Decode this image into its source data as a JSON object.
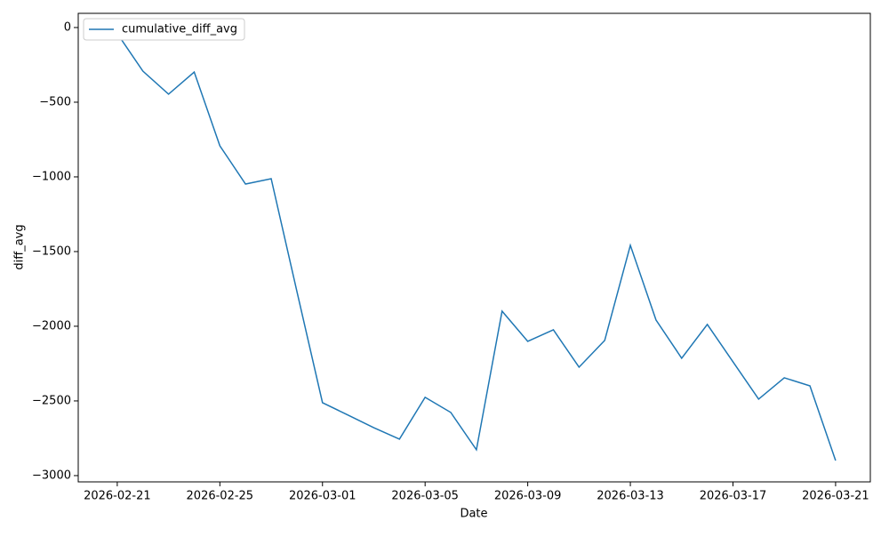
{
  "chart_data": {
    "type": "line",
    "x_label": "Date",
    "y_label": "diff_avg",
    "x": [
      "2026-02-21",
      "2026-02-22",
      "2026-02-23",
      "2026-02-24",
      "2026-02-25",
      "2026-02-26",
      "2026-02-27",
      "2026-02-28",
      "2026-03-01",
      "2026-03-02",
      "2026-03-03",
      "2026-03-04",
      "2026-03-05",
      "2026-03-06",
      "2026-03-07",
      "2026-03-08",
      "2026-03-09",
      "2026-03-10",
      "2026-03-11",
      "2026-03-12",
      "2026-03-13",
      "2026-03-14",
      "2026-03-15",
      "2026-03-16",
      "2026-03-17",
      "2026-03-18",
      "2026-03-19",
      "2026-03-20",
      "2026-03-21"
    ],
    "series": [
      {
        "name": "cumulative_diff_avg",
        "color": "#1f77b4",
        "values": [
          -40,
          -292,
          -446,
          -298,
          -792,
          -1048,
          -1012,
          -1765,
          -2512,
          -2595,
          -2679,
          -2756,
          -2476,
          -2577,
          -2827,
          -1899,
          -2101,
          -2024,
          -2274,
          -2095,
          -1458,
          -1958,
          -2214,
          -1988,
          -2238,
          -2488,
          -2345,
          -2399,
          -2899
        ]
      }
    ],
    "xlim": [
      "2026-02-19T11:30",
      "2026-03-22T08:30"
    ],
    "xticks": [
      "2026-02-21",
      "2026-02-25",
      "2026-03-01",
      "2026-03-05",
      "2026-03-09",
      "2026-03-13",
      "2026-03-17",
      "2026-03-21"
    ],
    "ylim": [
      -3042,
      95
    ],
    "yticks": [
      {
        "value": -3000,
        "label": "−3000"
      },
      {
        "value": -2500,
        "label": "−2500"
      },
      {
        "value": -2000,
        "label": "−2000"
      },
      {
        "value": -1500,
        "label": "−1500"
      },
      {
        "value": -1000,
        "label": "−1000"
      },
      {
        "value": -500,
        "label": "−500"
      },
      0
    ],
    "legend": "upper left",
    "grid": false
  }
}
